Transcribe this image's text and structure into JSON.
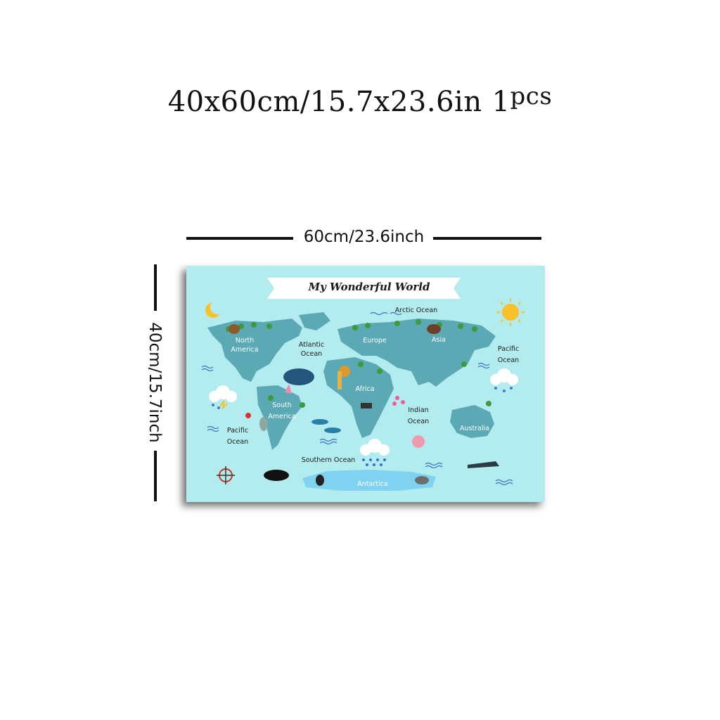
{
  "header": {
    "size_text": "40x60cm/15.7x23.6in",
    "qty_number": "1",
    "qty_unit": "pcs"
  },
  "dimensions": {
    "width_label": "60cm/23.6inch",
    "height_label": "40cm/15.7inch"
  },
  "poster": {
    "background_color": "#b3ecee",
    "land_color": "#5aa9b4",
    "title": "My Wonderful World",
    "labels": {
      "arctic_ocean": "Arctic Ocean",
      "north_america_1": "North",
      "north_america_2": "America",
      "atlantic_ocean_1": "Atlantic",
      "atlantic_ocean_2": "Ocean",
      "europe": "Europe",
      "asia": "Asia",
      "pacific_ocean_right_1": "Pacific",
      "pacific_ocean_right_2": "Ocean",
      "africa": "Africa",
      "south_america_1": "South",
      "south_america_2": "America",
      "indian_ocean_1": "Indian",
      "indian_ocean_2": "Ocean",
      "pacific_ocean_left_1": "Pacific",
      "pacific_ocean_left_2": "Ocean",
      "australia": "Australia",
      "southern_ocean": "Southern Ocean",
      "antarctica": "Antartica"
    }
  }
}
